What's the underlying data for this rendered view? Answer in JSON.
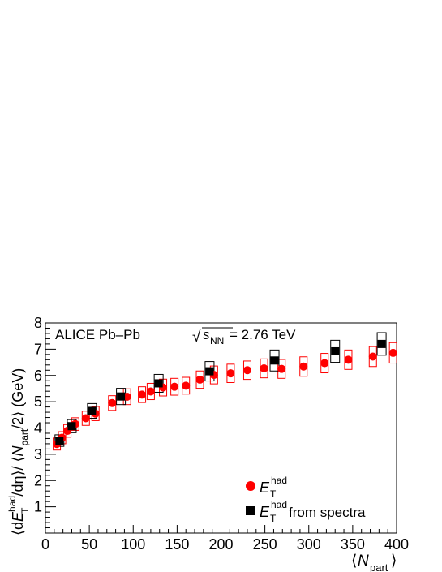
{
  "chart_data": {
    "type": "scatter",
    "annotation": {
      "prefix": "ALICE Pb–Pb ",
      "sqrt_symbol": "√",
      "s_letter": "s",
      "s_sub": "NN",
      "suffix": " = 2.76 TeV"
    },
    "xlabel": {
      "open": "⟨",
      "var": "N",
      "sub": "part",
      "close": "⟩"
    },
    "ylabel": {
      "p1": "⟨d",
      "E": "E",
      "sup": "had",
      "sub": "T",
      "p2": "/dη⟩/ ⟨",
      "N": "N",
      "nsub": "part",
      "p3": "/2⟩ (GeV)"
    },
    "xlim": [
      0,
      400
    ],
    "ylim": [
      0,
      8
    ],
    "x_ticks": [
      "0",
      "50",
      "100",
      "150",
      "200",
      "250",
      "300",
      "350",
      "400"
    ],
    "y_ticks": [
      "1",
      "2",
      "3",
      "4",
      "5",
      "6",
      "7",
      "8"
    ],
    "legend_position": "bottom-right",
    "series": [
      {
        "legend": {
          "E": "E",
          "sup": "had",
          "sub": "T",
          "suffix": ""
        },
        "marker": "circle",
        "color": "#ff0000",
        "x": [
          13,
          19,
          25,
          34,
          46,
          57,
          76,
          93,
          110,
          120,
          134,
          147,
          160,
          176,
          192,
          211,
          230,
          249,
          269,
          294,
          318,
          345,
          373,
          396
        ],
        "y": [
          3.39,
          3.63,
          3.89,
          4.15,
          4.37,
          4.55,
          4.95,
          5.19,
          5.27,
          5.39,
          5.54,
          5.57,
          5.61,
          5.84,
          6.02,
          6.08,
          6.2,
          6.27,
          6.25,
          6.34,
          6.47,
          6.6,
          6.72,
          6.86
        ],
        "syst": [
          0.23,
          0.23,
          0.24,
          0.24,
          0.27,
          0.27,
          0.28,
          0.3,
          0.3,
          0.31,
          0.32,
          0.32,
          0.32,
          0.33,
          0.34,
          0.35,
          0.35,
          0.36,
          0.36,
          0.37,
          0.37,
          0.37,
          0.38,
          0.39
        ]
      },
      {
        "legend": {
          "E": "E",
          "sup": "had",
          "sub": "T",
          "suffix": " from spectra"
        },
        "marker": "square",
        "color": "#000000",
        "x": [
          16,
          30,
          53,
          86,
          129,
          187,
          261,
          330,
          383
        ],
        "y": [
          3.52,
          4.07,
          4.65,
          5.2,
          5.7,
          6.16,
          6.57,
          6.92,
          7.2
        ],
        "syst": [
          0.22,
          0.25,
          0.28,
          0.31,
          0.34,
          0.37,
          0.4,
          0.42,
          0.43
        ]
      }
    ]
  }
}
